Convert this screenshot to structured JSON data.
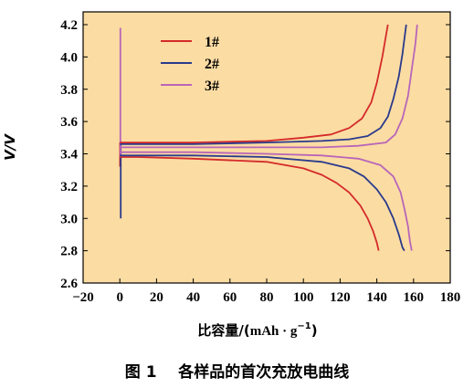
{
  "chart_data": {
    "type": "line",
    "title": "",
    "xlabel": "比容量/(mAh·g⁻¹)",
    "xlabel_parts": {
      "prefix": "比容量/(",
      "unit": "mAh · g",
      "sup": "−1",
      "suffix": ")"
    },
    "ylabel": "V/V",
    "xlim": [
      -20,
      180
    ],
    "ylim": [
      2.6,
      4.25
    ],
    "xticks": [
      -20,
      0,
      20,
      40,
      60,
      80,
      100,
      120,
      140,
      160,
      180
    ],
    "yticks": [
      2.6,
      2.8,
      3.0,
      3.2,
      3.4,
      3.6,
      3.8,
      4.0,
      4.2
    ],
    "ytick_labels": [
      "2.6",
      "2.8",
      "3.0",
      "3.2",
      "3.4",
      "3.6",
      "3.8",
      "4.0",
      "4.2"
    ],
    "background": "#fbdca3",
    "legend_position": "top-left",
    "series": [
      {
        "name": "1#",
        "color": "#d42a2a",
        "charge": {
          "x": [
            0,
            10,
            40,
            80,
            100,
            115,
            125,
            132,
            137,
            140,
            143,
            146
          ],
          "y": [
            3.47,
            3.47,
            3.47,
            3.48,
            3.5,
            3.52,
            3.56,
            3.62,
            3.72,
            3.84,
            4.0,
            4.2
          ]
        },
        "discharge": {
          "x": [
            0,
            10,
            40,
            80,
            100,
            110,
            118,
            125,
            131,
            135,
            138,
            140,
            141
          ],
          "y": [
            3.38,
            3.38,
            3.37,
            3.35,
            3.31,
            3.27,
            3.22,
            3.16,
            3.08,
            3.0,
            2.92,
            2.85,
            2.8
          ]
        }
      },
      {
        "name": "2#",
        "color": "#2a3a8c",
        "charge": {
          "x": [
            0,
            10,
            40,
            80,
            110,
            125,
            135,
            142,
            146,
            149,
            152,
            154,
            156
          ],
          "y": [
            3.46,
            3.46,
            3.46,
            3.47,
            3.48,
            3.49,
            3.51,
            3.56,
            3.63,
            3.74,
            3.88,
            4.02,
            4.2
          ]
        },
        "discharge": {
          "x": [
            0,
            10,
            40,
            80,
            110,
            125,
            133,
            140,
            145,
            149,
            152,
            154,
            155
          ],
          "y": [
            3.39,
            3.39,
            3.39,
            3.38,
            3.35,
            3.31,
            3.26,
            3.18,
            3.1,
            3.0,
            2.9,
            2.82,
            2.8
          ]
        }
      },
      {
        "name": "3#",
        "color": "#b866b8",
        "charge": {
          "x": [
            0,
            10,
            40,
            80,
            110,
            130,
            145,
            150,
            154,
            157,
            159,
            161,
            162
          ],
          "y": [
            3.44,
            3.44,
            3.44,
            3.44,
            3.44,
            3.45,
            3.47,
            3.52,
            3.62,
            3.76,
            3.92,
            4.08,
            4.2
          ]
        },
        "discharge": {
          "x": [
            0,
            10,
            40,
            80,
            110,
            130,
            142,
            149,
            153,
            155,
            157,
            158,
            159
          ],
          "y": [
            3.41,
            3.41,
            3.41,
            3.4,
            3.39,
            3.37,
            3.33,
            3.26,
            3.16,
            3.06,
            2.95,
            2.86,
            2.8
          ]
        }
      }
    ],
    "initial_vertical_lines": [
      {
        "series": "1#",
        "color": "#d42a2a",
        "x": 0.1,
        "y_from": 3.32,
        "y_to": 3.47
      },
      {
        "series": "2#",
        "color": "#2a3a8c",
        "x": 0.5,
        "y_from": 3.0,
        "y_to": 3.46
      },
      {
        "series": "3#",
        "color": "#b866b8",
        "x": 0.3,
        "y_from": 3.38,
        "y_to": 4.18
      }
    ]
  },
  "caption": {
    "figure_label": "图 1",
    "text": "各样品的首次充放电曲线"
  }
}
